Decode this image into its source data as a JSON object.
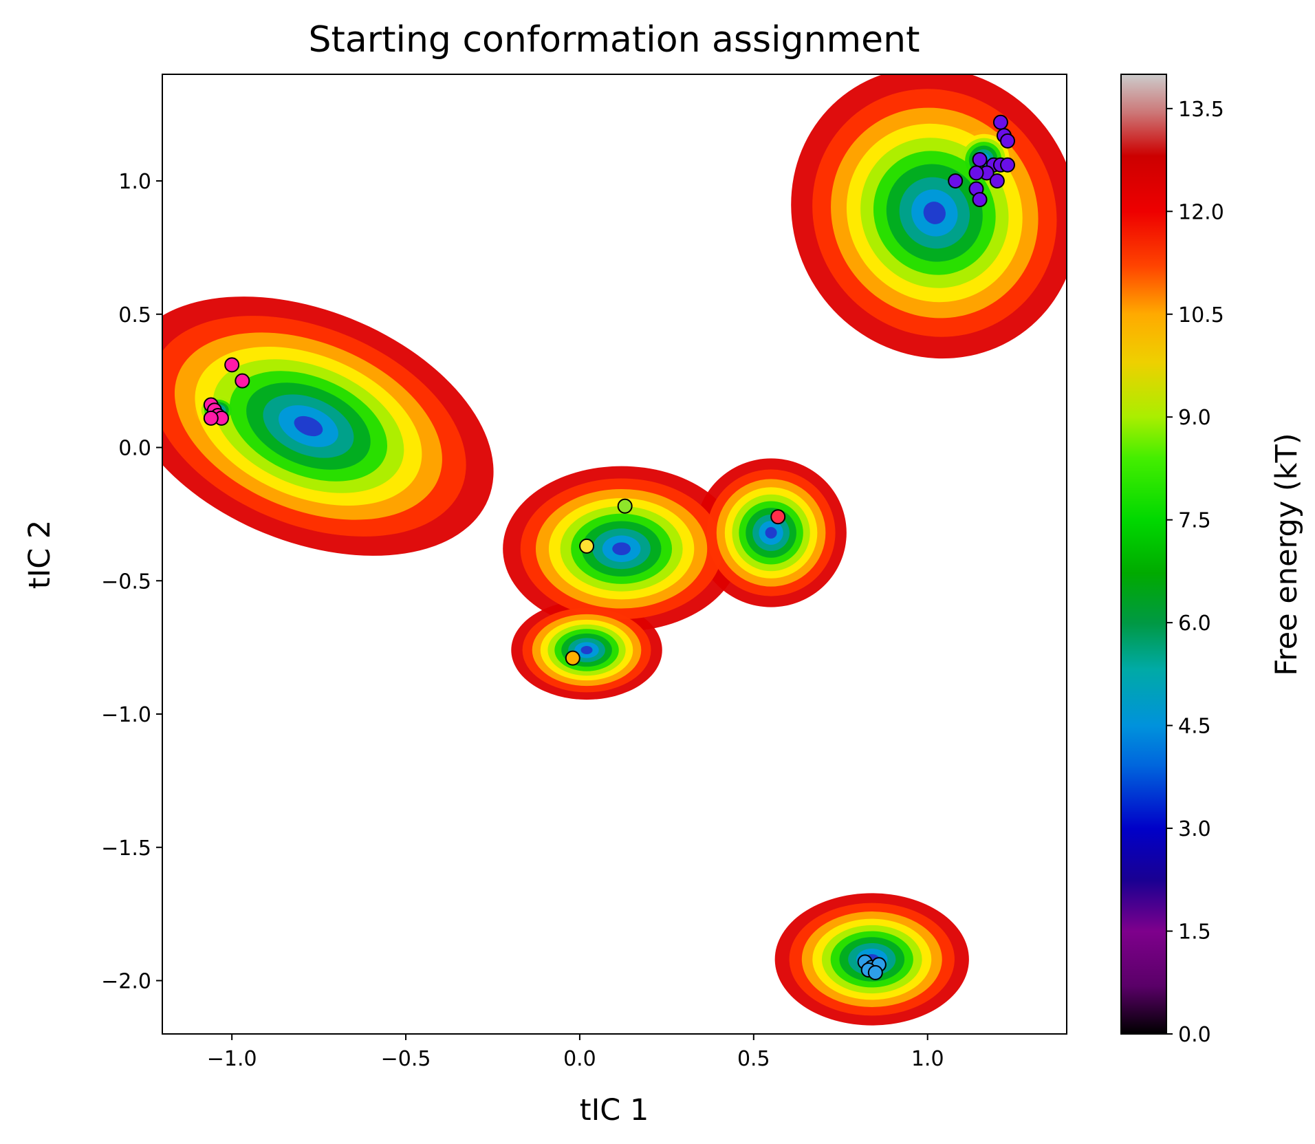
{
  "chart_data": {
    "type": "scatter",
    "title": "Starting conformation assignment",
    "xlabel": "tIC 1",
    "ylabel": "tIC 2",
    "xlim": [
      -1.2,
      1.4
    ],
    "ylim": [
      -2.2,
      1.4
    ],
    "xticks": [
      "−1.0",
      "−0.5",
      "0.0",
      "0.5",
      "1.0"
    ],
    "xtick_values": [
      -1.0,
      -0.5,
      0.0,
      0.5,
      1.0
    ],
    "yticks": [
      "−2.0",
      "−1.5",
      "−1.0",
      "−0.5",
      "0.0",
      "0.5",
      "1.0"
    ],
    "ytick_values": [
      -2.0,
      -1.5,
      -1.0,
      -0.5,
      0.0,
      0.5,
      1.0
    ],
    "grid": false,
    "background": "free-energy contour map (nipy_spectral colormap)",
    "colorbar": {
      "label": "Free energy (kT)",
      "range": [
        0.0,
        14.0
      ],
      "ticks": [
        "0.0",
        "1.5",
        "3.0",
        "4.5",
        "6.0",
        "7.5",
        "9.0",
        "10.5",
        "12.0",
        "13.5"
      ],
      "tick_values": [
        0.0,
        1.5,
        3.0,
        4.5,
        6.0,
        7.5,
        9.0,
        10.5,
        12.0,
        13.5
      ]
    },
    "basins": [
      {
        "x": -0.78,
        "y": 0.08,
        "sx": 0.36,
        "sy": 0.28,
        "rot": -22
      },
      {
        "x": -1.04,
        "y": 0.14,
        "sx": 0.06,
        "sy": 0.06,
        "rot": 0
      },
      {
        "x": 1.02,
        "y": 0.88,
        "sx": 0.26,
        "sy": 0.36,
        "rot": 38
      },
      {
        "x": 1.16,
        "y": 1.08,
        "sx": 0.08,
        "sy": 0.1,
        "rot": 30
      },
      {
        "x": 0.12,
        "y": -0.38,
        "sx": 0.22,
        "sy": 0.2,
        "rot": 0
      },
      {
        "x": 0.55,
        "y": -0.32,
        "sx": 0.14,
        "sy": 0.18,
        "rot": 0
      },
      {
        "x": 0.02,
        "y": -0.76,
        "sx": 0.14,
        "sy": 0.12,
        "rot": 0
      },
      {
        "x": 0.84,
        "y": -1.92,
        "sx": 0.18,
        "sy": 0.16,
        "rot": 0
      },
      {
        "x": 0.85,
        "y": -1.95,
        "sx": 0.05,
        "sy": 0.05,
        "rot": 0
      }
    ],
    "series": [
      {
        "color": "#ff1aa8",
        "points": [
          [
            -1.0,
            0.31
          ],
          [
            -0.97,
            0.25
          ],
          [
            -1.06,
            0.16
          ],
          [
            -1.05,
            0.14
          ],
          [
            -1.04,
            0.12
          ],
          [
            -1.03,
            0.11
          ],
          [
            -1.06,
            0.11
          ]
        ]
      },
      {
        "color": "#6a0fe8",
        "points": [
          [
            1.21,
            1.22
          ],
          [
            1.22,
            1.17
          ],
          [
            1.23,
            1.15
          ],
          [
            1.15,
            1.08
          ],
          [
            1.19,
            1.06
          ],
          [
            1.21,
            1.06
          ],
          [
            1.23,
            1.06
          ],
          [
            1.17,
            1.03
          ],
          [
            1.14,
            1.03
          ],
          [
            1.08,
            1.0
          ],
          [
            1.2,
            1.0
          ],
          [
            1.14,
            0.97
          ],
          [
            1.15,
            0.93
          ]
        ]
      },
      {
        "color": "#8ee62a",
        "points": [
          [
            0.13,
            -0.22
          ]
        ]
      },
      {
        "color": "#ffe033",
        "points": [
          [
            0.02,
            -0.37
          ]
        ]
      },
      {
        "color": "#ff2f4a",
        "points": [
          [
            0.57,
            -0.26
          ]
        ]
      },
      {
        "color": "#ffb000",
        "points": [
          [
            -0.02,
            -0.79
          ]
        ]
      },
      {
        "color": "#2e9fe8",
        "points": [
          [
            0.82,
            -1.93
          ],
          [
            0.84,
            -1.95
          ],
          [
            0.86,
            -1.94
          ],
          [
            0.83,
            -1.96
          ],
          [
            0.85,
            -1.97
          ]
        ]
      }
    ]
  }
}
